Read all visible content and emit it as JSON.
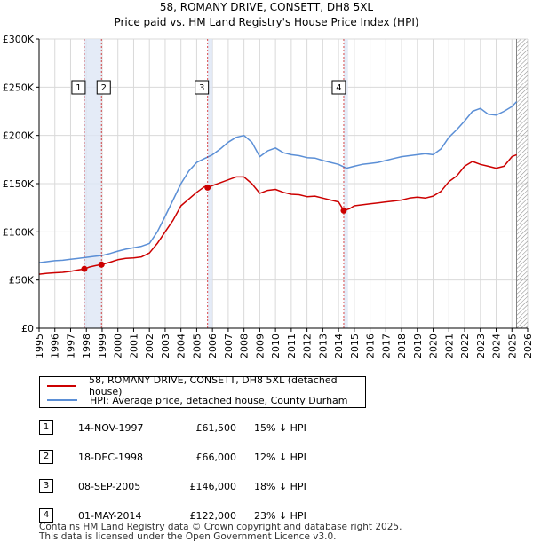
{
  "chart_data": {
    "type": "line",
    "title": "58, ROMANY DRIVE, CONSETT, DH8 5XL",
    "subtitle": "Price paid vs. HM Land Registry's House Price Index (HPI)",
    "xlim": [
      1995,
      2026
    ],
    "ylim": [
      0,
      300000
    ],
    "y_ticks": [
      0,
      50000,
      100000,
      150000,
      200000,
      250000,
      300000
    ],
    "y_tick_labels": [
      "£0",
      "£50K",
      "£100K",
      "£150K",
      "£200K",
      "£250K",
      "£300K"
    ],
    "x_ticks": [
      1995,
      1996,
      1997,
      1998,
      1999,
      2000,
      2001,
      2002,
      2003,
      2004,
      2005,
      2006,
      2007,
      2008,
      2009,
      2010,
      2011,
      2012,
      2013,
      2014,
      2015,
      2016,
      2017,
      2018,
      2019,
      2020,
      2021,
      2022,
      2023,
      2024,
      2025,
      2026
    ],
    "x_tick_labels": [
      "1995",
      "1996",
      "1997",
      "1998",
      "1999",
      "2000",
      "2001",
      "2002",
      "2003",
      "2004",
      "2005",
      "2006",
      "2007",
      "2008",
      "2009",
      "2010",
      "2011",
      "2012",
      "2013",
      "2014",
      "2015",
      "2016",
      "2017",
      "2018",
      "2019",
      "2020",
      "2021",
      "2022",
      "2023",
      "2024",
      "2025",
      "2026"
    ],
    "grid": true,
    "series": [
      {
        "name": "58, ROMANY DRIVE, CONSETT, DH8 5XL (detached house)",
        "color": "#cc0000",
        "x": [
          1995,
          1995.5,
          1996,
          1996.5,
          1997,
          1997.5,
          1997.87,
          1998.2,
          1998.6,
          1998.96,
          1999.5,
          2000,
          2000.5,
          2001,
          2001.5,
          2002,
          2002.5,
          2003,
          2003.5,
          2004,
          2004.5,
          2005,
          2005.5,
          2005.69,
          2006,
          2006.5,
          2007,
          2007.5,
          2008,
          2008.5,
          2009,
          2009.5,
          2010,
          2010.5,
          2011,
          2011.5,
          2012,
          2012.5,
          2013,
          2013.5,
          2014,
          2014.33,
          2014.7,
          2015,
          2015.5,
          2016,
          2016.5,
          2017,
          2017.5,
          2018,
          2018.5,
          2019,
          2019.5,
          2020,
          2020.5,
          2021,
          2021.5,
          2022,
          2022.5,
          2023,
          2023.5,
          2024,
          2024.5,
          2025,
          2025.3
        ],
        "y": [
          56000,
          57000,
          57500,
          58000,
          59000,
          60500,
          61500,
          63500,
          65000,
          66000,
          68500,
          71000,
          72500,
          73000,
          74000,
          78000,
          88000,
          100000,
          112000,
          127000,
          134000,
          141000,
          147000,
          146000,
          148000,
          151000,
          154000,
          157000,
          157000,
          150000,
          140000,
          143000,
          144000,
          141000,
          139000,
          138500,
          136500,
          137000,
          135000,
          133000,
          131000,
          122000,
          124000,
          127000,
          128000,
          129000,
          130000,
          131000,
          132000,
          133000,
          135000,
          136000,
          135000,
          137000,
          142000,
          152000,
          158000,
          168000,
          173000,
          170000,
          168000,
          166000,
          168000,
          178000,
          180000
        ]
      },
      {
        "name": "HPI: Average price, detached house, County Durham",
        "color": "#5b8fd6",
        "x": [
          1995,
          1995.5,
          1996,
          1996.5,
          1997,
          1997.5,
          1998,
          1998.5,
          1999,
          1999.5,
          2000,
          2000.5,
          2001,
          2001.5,
          2002,
          2002.5,
          2003,
          2003.5,
          2004,
          2004.5,
          2005,
          2005.5,
          2006,
          2006.5,
          2007,
          2007.5,
          2008,
          2008.5,
          2009,
          2009.5,
          2010,
          2010.5,
          2011,
          2011.5,
          2012,
          2012.5,
          2013,
          2013.5,
          2014,
          2014.5,
          2015,
          2015.5,
          2016,
          2016.5,
          2017,
          2017.5,
          2018,
          2018.5,
          2019,
          2019.5,
          2020,
          2020.5,
          2021,
          2021.5,
          2022,
          2022.5,
          2023,
          2023.5,
          2024,
          2024.5,
          2025,
          2025.3
        ],
        "y": [
          68000,
          69000,
          70000,
          70500,
          71500,
          72500,
          73500,
          74500,
          75500,
          77500,
          80000,
          82000,
          83500,
          85000,
          88000,
          100000,
          116000,
          133000,
          150000,
          163000,
          172000,
          176000,
          180000,
          186000,
          193000,
          198000,
          200000,
          193000,
          178000,
          184000,
          187000,
          182000,
          180000,
          179000,
          177000,
          176500,
          174000,
          172000,
          170000,
          166000,
          168000,
          170000,
          171000,
          172000,
          174000,
          176000,
          178000,
          179000,
          180000,
          181000,
          180000,
          186000,
          198000,
          206000,
          215000,
          225000,
          228000,
          222000,
          221000,
          225000,
          230000,
          235000
        ]
      }
    ],
    "sales": [
      {
        "label": "1",
        "x": 1997.87,
        "y": 61500
      },
      {
        "label": "2",
        "x": 1998.96,
        "y": 66000
      },
      {
        "label": "3",
        "x": 2005.69,
        "y": 146000
      },
      {
        "label": "4",
        "x": 2014.33,
        "y": 122000
      }
    ]
  },
  "legend": {
    "property_label": "58, ROMANY DRIVE, CONSETT, DH8 5XL (detached house)",
    "hpi_label": "HPI: Average price, detached house, County Durham"
  },
  "transactions": [
    {
      "num": "1",
      "date": "14-NOV-1997",
      "price": "£61,500",
      "hpi": "15% ↓ HPI"
    },
    {
      "num": "2",
      "date": "18-DEC-1998",
      "price": "£66,000",
      "hpi": "12% ↓ HPI"
    },
    {
      "num": "3",
      "date": "08-SEP-2005",
      "price": "£146,000",
      "hpi": "18% ↓ HPI"
    },
    {
      "num": "4",
      "date": "01-MAY-2014",
      "price": "£122,000",
      "hpi": "23% ↓ HPI"
    }
  ],
  "footer": {
    "line1": "Contains HM Land Registry data © Crown copyright and database right 2025.",
    "line2": "This data is licensed under the Open Government Licence v3.0."
  },
  "colors": {
    "property": "#cc0000",
    "hpi": "#5b8fd6",
    "sale_band": "#dde6f5",
    "hatch": "#999999"
  }
}
